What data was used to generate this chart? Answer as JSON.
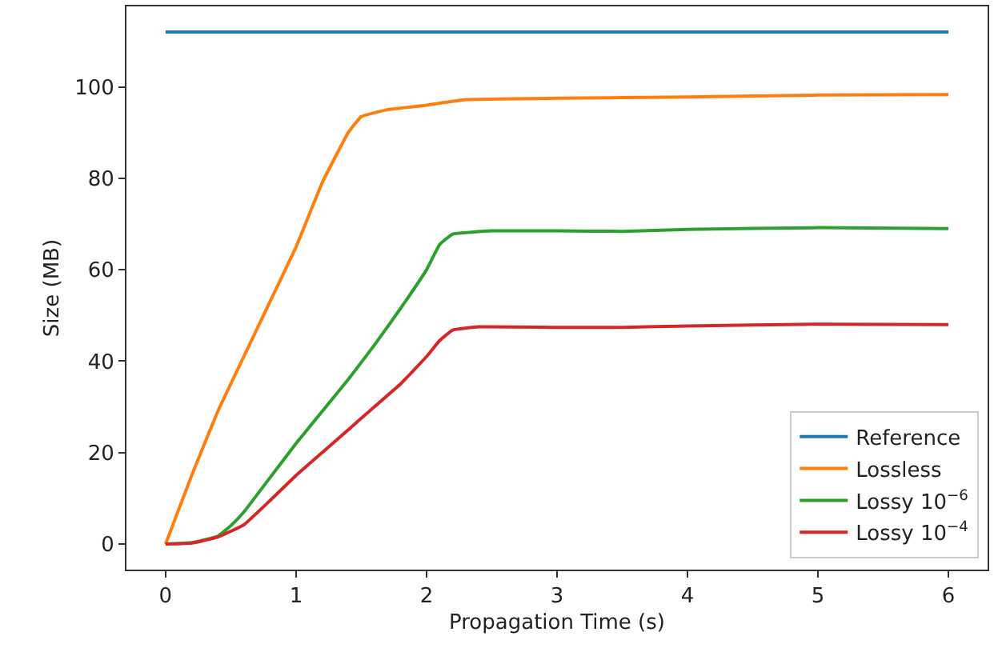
{
  "chart_data": {
    "type": "line",
    "xlabel": "Propagation Time (s)",
    "ylabel": "Size (MB)",
    "xlim": [
      -0.3,
      6.3
    ],
    "xticks": [
      0,
      1,
      2,
      3,
      4,
      5,
      6
    ],
    "ylim": [
      -5.6,
      117.6
    ],
    "yticks": [
      0,
      20,
      40,
      60,
      80,
      100
    ],
    "legend": "bottom right",
    "marker": "none",
    "line_style": "solid",
    "series": [
      {
        "name": "Reference",
        "color": "#1f77b4",
        "x": [
          0,
          6
        ],
        "values": [
          112,
          112
        ]
      },
      {
        "name": "Lossless",
        "color": "#ff7f0e",
        "x": [
          0,
          0.04,
          0.2,
          0.4,
          0.6,
          0.8,
          1.0,
          1.2,
          1.4,
          1.5,
          1.7,
          2.0,
          2.3,
          3,
          4,
          5,
          6
        ],
        "values": [
          0,
          3,
          15,
          29,
          41,
          53,
          65,
          79,
          90,
          93.5,
          95,
          96,
          97.2,
          97.5,
          97.8,
          98.2,
          98.3
        ]
      },
      {
        "name": "Lossy 10$^{−6}$",
        "color": "#2ca02c",
        "x": [
          0,
          0.2,
          0.4,
          0.5,
          0.6,
          0.8,
          1.0,
          1.2,
          1.4,
          1.6,
          1.8,
          2.0,
          2.1,
          2.2,
          2.5,
          3,
          3.5,
          4,
          5,
          6
        ],
        "values": [
          0,
          0.3,
          1.7,
          4,
          7,
          14.5,
          22,
          29,
          36,
          43.5,
          51.5,
          60,
          65.5,
          67.8,
          68.5,
          68.5,
          68.4,
          68.8,
          69.2,
          69.0
        ]
      },
      {
        "name": "Lossy 10$^{−4}$",
        "color": "#d62728",
        "x": [
          0,
          0.2,
          0.4,
          0.6,
          0.8,
          1.0,
          1.2,
          1.4,
          1.6,
          1.8,
          2.0,
          2.1,
          2.2,
          2.4,
          3,
          3.5,
          4,
          5,
          6
        ],
        "values": [
          0,
          0.2,
          1.5,
          4.2,
          9.5,
          15,
          20,
          25,
          30,
          35,
          41,
          44.5,
          46.8,
          47.5,
          47.4,
          47.4,
          47.7,
          48.1,
          48.0
        ]
      }
    ]
  }
}
